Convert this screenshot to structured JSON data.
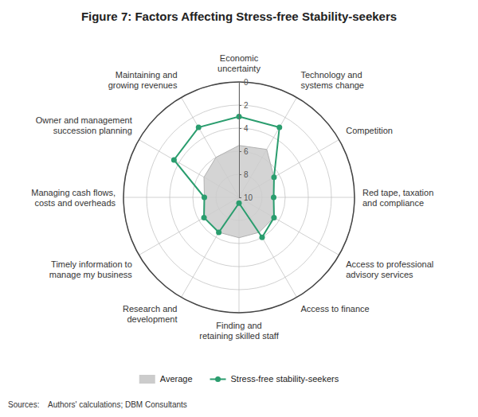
{
  "chart_data": {
    "type": "radar",
    "title": "Figure 7: Factors Affecting Stress-free Stability-seekers",
    "categories": [
      "Economic\nuncertainty",
      "Technology and\nsystems change",
      "Competition",
      "Red tape, taxation\nand compliance",
      "Access to professional\nadvisory services",
      "Access to finance",
      "Finding and\nretaining skilled staff",
      "Research and\ndevelopment",
      "Timely information to\nmanage my business",
      "Managing cash flows,\ncosts and overheads",
      "Owner and management\nsuccession planning",
      "Maintaining and\ngrowing revenues"
    ],
    "series": [
      {
        "name": "Average",
        "type": "area",
        "color": "#cccccc",
        "values": [
          5.5,
          5.2,
          6.5,
          7.0,
          6.5,
          6.5,
          6.5,
          6.5,
          6.5,
          7.0,
          6.5,
          6.0
        ]
      },
      {
        "name": "Stress-free stability-seekers",
        "type": "line",
        "color": "#2a9d6e",
        "marker": "circle",
        "values": [
          3.0,
          3.0,
          6.5,
          7.0,
          6.5,
          6.0,
          9.5,
          6.5,
          6.5,
          7.0,
          3.5,
          3.0
        ]
      }
    ],
    "ylim": [
      10,
      0
    ],
    "yticks": [
      0,
      2,
      4,
      6,
      8,
      10
    ],
    "grid": true,
    "legend": "bottom",
    "annotations": [
      "Sources:    Authors' calculations; DBM Consultants"
    ]
  }
}
